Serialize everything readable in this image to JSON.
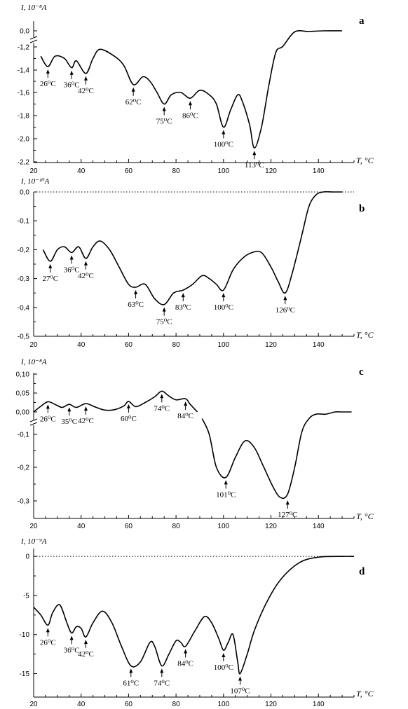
{
  "chart_data": [
    {
      "type": "line",
      "panel_label": "a",
      "ylabel": "I, 10⁻⁸A",
      "xlabel": "T, °C",
      "xlim": [
        20,
        155
      ],
      "x_ticks": [
        20,
        40,
        60,
        80,
        100,
        120,
        140
      ],
      "y_ticks": [
        "0,0",
        "-1,2",
        "-1,4",
        "-1,6",
        "-1,8",
        "-2,0",
        "-2,2"
      ],
      "y_tick_values": [
        0.0,
        -1.2,
        -1.4,
        -1.6,
        -1.8,
        -2.0,
        -2.2
      ],
      "axis_break": true,
      "series": [
        {
          "x": [
            23,
            26,
            29,
            33,
            36,
            38,
            42,
            45,
            48,
            54,
            58,
            62,
            66,
            69,
            72,
            75,
            78,
            82,
            86,
            90,
            94,
            97,
            100,
            103,
            106,
            108,
            111,
            113,
            116,
            119,
            122,
            125,
            130,
            136,
            142,
            150
          ],
          "y": [
            -1.28,
            -1.37,
            -1.28,
            -1.3,
            -1.38,
            -1.32,
            -1.43,
            -1.3,
            -1.22,
            -1.28,
            -1.36,
            -1.53,
            -1.46,
            -1.5,
            -1.6,
            -1.7,
            -1.62,
            -1.6,
            -1.65,
            -1.58,
            -1.62,
            -1.7,
            -1.9,
            -1.75,
            -1.62,
            -1.68,
            -1.88,
            -2.08,
            -1.9,
            -1.55,
            -1.25,
            -1.16,
            -0.08,
            -0.05,
            0.0,
            0.0
          ]
        }
      ],
      "annotations": [
        {
          "x": 26,
          "y": -1.37,
          "text": "26⁰C"
        },
        {
          "x": 36,
          "y": -1.38,
          "text": "36⁰C"
        },
        {
          "x": 42,
          "y": -1.43,
          "text": "42⁰C"
        },
        {
          "x": 62,
          "y": -1.53,
          "text": "62⁰C"
        },
        {
          "x": 75,
          "y": -1.7,
          "text": "75⁰C"
        },
        {
          "x": 86,
          "y": -1.65,
          "text": "86⁰C"
        },
        {
          "x": 100,
          "y": -1.9,
          "text": "100⁰C"
        },
        {
          "x": 113,
          "y": -2.08,
          "text": "113⁰C"
        }
      ]
    },
    {
      "type": "line",
      "panel_label": "b",
      "ylabel": "I, 10⁻¹⁰A",
      "xlabel": "T, °C",
      "xlim": [
        20,
        155
      ],
      "ylim": [
        -0.5,
        0.0
      ],
      "x_ticks": [
        20,
        40,
        60,
        80,
        100,
        120,
        140
      ],
      "y_ticks": [
        "0,0",
        "-0,1",
        "-0,2",
        "-0,3",
        "-0,4",
        "-0,5"
      ],
      "y_tick_values": [
        0.0,
        -0.1,
        -0.2,
        -0.3,
        -0.4,
        -0.5
      ],
      "zero_line": "dotted",
      "series": [
        {
          "x": [
            24,
            27,
            30,
            33,
            36,
            39,
            42,
            45,
            48,
            52,
            56,
            60,
            63,
            67,
            71,
            75,
            79,
            83,
            87,
            91,
            94,
            97,
            100,
            104,
            108,
            112,
            116,
            120,
            123,
            126,
            129,
            133,
            136,
            139,
            142,
            146,
            150
          ],
          "y": [
            -0.2,
            -0.24,
            -0.2,
            -0.19,
            -0.21,
            -0.19,
            -0.23,
            -0.19,
            -0.17,
            -0.2,
            -0.26,
            -0.32,
            -0.33,
            -0.32,
            -0.37,
            -0.39,
            -0.35,
            -0.34,
            -0.32,
            -0.29,
            -0.3,
            -0.32,
            -0.34,
            -0.27,
            -0.23,
            -0.21,
            -0.21,
            -0.26,
            -0.31,
            -0.35,
            -0.28,
            -0.15,
            -0.05,
            -0.01,
            0.0,
            0.0,
            0.0
          ]
        }
      ],
      "annotations": [
        {
          "x": 27,
          "y": -0.24,
          "text": "27⁰C"
        },
        {
          "x": 36,
          "y": -0.21,
          "text": "36⁰C"
        },
        {
          "x": 42,
          "y": -0.23,
          "text": "42⁰C"
        },
        {
          "x": 63,
          "y": -0.33,
          "text": "63⁰C"
        },
        {
          "x": 75,
          "y": -0.39,
          "text": "75⁰C"
        },
        {
          "x": 83,
          "y": -0.34,
          "text": "83⁰C"
        },
        {
          "x": 100,
          "y": -0.34,
          "text": "100⁰C"
        },
        {
          "x": 126,
          "y": -0.35,
          "text": "126⁰C"
        }
      ]
    },
    {
      "type": "line",
      "panel_label": "c",
      "ylabel": "I, 10⁻⁸A",
      "xlabel": "T, °C",
      "xlim": [
        20,
        155
      ],
      "x_ticks": [
        20,
        40,
        60,
        80,
        100,
        120,
        140
      ],
      "y_ticks": [
        "0,10",
        "0,05",
        "0,00",
        "-0,1",
        "-0,2",
        "-0,3"
      ],
      "y_tick_values": [
        0.1,
        0.05,
        0.0,
        -0.1,
        -0.2,
        -0.3
      ],
      "axis_break": true,
      "series": [
        {
          "x": [
            20,
            23,
            26,
            29,
            32,
            35,
            38,
            42,
            46,
            50,
            54,
            58,
            60,
            63,
            67,
            71,
            74,
            77,
            80,
            84,
            86,
            89
          ],
          "y": [
            0.0,
            0.015,
            0.027,
            0.02,
            0.012,
            0.02,
            0.012,
            0.022,
            0.013,
            0.005,
            0.006,
            0.016,
            0.028,
            0.014,
            0.025,
            0.04,
            0.055,
            0.042,
            0.032,
            0.035,
            0.02,
            0.0
          ]
        },
        {
          "x": [
            91,
            94,
            97,
            101,
            105,
            109,
            113,
            117,
            121,
            124,
            127,
            130,
            133,
            136,
            139,
            143,
            147,
            150,
            154
          ],
          "y": [
            -0.03,
            -0.1,
            -0.2,
            -0.23,
            -0.17,
            -0.12,
            -0.14,
            -0.2,
            -0.26,
            -0.29,
            -0.28,
            -0.2,
            -0.09,
            -0.03,
            -0.01,
            -0.01,
            0.0,
            0.0,
            0.0
          ]
        }
      ],
      "annotations": [
        {
          "x": 26,
          "y": 0.027,
          "text": "26⁰C"
        },
        {
          "x": 35,
          "y": 0.02,
          "text": "35⁰C"
        },
        {
          "x": 42,
          "y": 0.022,
          "text": "42⁰C"
        },
        {
          "x": 60,
          "y": 0.028,
          "text": "60⁰C"
        },
        {
          "x": 74,
          "y": 0.055,
          "text": "74⁰C"
        },
        {
          "x": 84,
          "y": 0.035,
          "text": "84⁰C"
        },
        {
          "x": 101,
          "y": -0.23,
          "text": "101⁰C"
        },
        {
          "x": 127,
          "y": -0.29,
          "text": "127⁰C"
        }
      ]
    },
    {
      "type": "line",
      "panel_label": "d",
      "ylabel": "I, 10⁻⁹A",
      "xlabel": "T, °C",
      "xlim": [
        20,
        155
      ],
      "ylim": [
        -18,
        1
      ],
      "x_ticks": [
        20,
        40,
        60,
        80,
        100,
        120,
        140
      ],
      "y_ticks": [
        "0",
        "-5",
        "-10",
        "-15"
      ],
      "y_tick_values": [
        0,
        -5,
        -10,
        -15
      ],
      "zero_line": "dotted",
      "series": [
        {
          "x": [
            20,
            23,
            26,
            28,
            31,
            34,
            36,
            38,
            40,
            42,
            45,
            49,
            53,
            57,
            61,
            65,
            69,
            71,
            74,
            77,
            80,
            82,
            84,
            88,
            92,
            95,
            98,
            100,
            102,
            104,
            106,
            107,
            110,
            113,
            118,
            124,
            132,
            140,
            150,
            155
          ],
          "y": [
            -6.5,
            -7.5,
            -8.8,
            -7.2,
            -6.2,
            -8.5,
            -9.8,
            -9.0,
            -9.2,
            -10.3,
            -8.5,
            -7.0,
            -8.5,
            -11.5,
            -14.0,
            -13.5,
            -11.0,
            -11.5,
            -14.0,
            -12.5,
            -10.8,
            -11.0,
            -11.5,
            -9.5,
            -7.7,
            -8.5,
            -10.5,
            -12.0,
            -11.0,
            -10.0,
            -13.5,
            -15.0,
            -12.5,
            -9.5,
            -6.0,
            -3.0,
            -0.8,
            -0.1,
            0.0,
            0.0
          ]
        }
      ],
      "annotations": [
        {
          "x": 26,
          "y": -8.8,
          "text": "26⁰C"
        },
        {
          "x": 36,
          "y": -9.8,
          "text": "36⁰C"
        },
        {
          "x": 42,
          "y": -10.3,
          "text": "42⁰C"
        },
        {
          "x": 61,
          "y": -14.0,
          "text": "61⁰C"
        },
        {
          "x": 74,
          "y": -14.0,
          "text": "74⁰C"
        },
        {
          "x": 84,
          "y": -11.5,
          "text": "84⁰C"
        },
        {
          "x": 100,
          "y": -12.0,
          "text": "100⁰C"
        },
        {
          "x": 107,
          "y": -15.0,
          "text": "107⁰C"
        }
      ]
    }
  ]
}
